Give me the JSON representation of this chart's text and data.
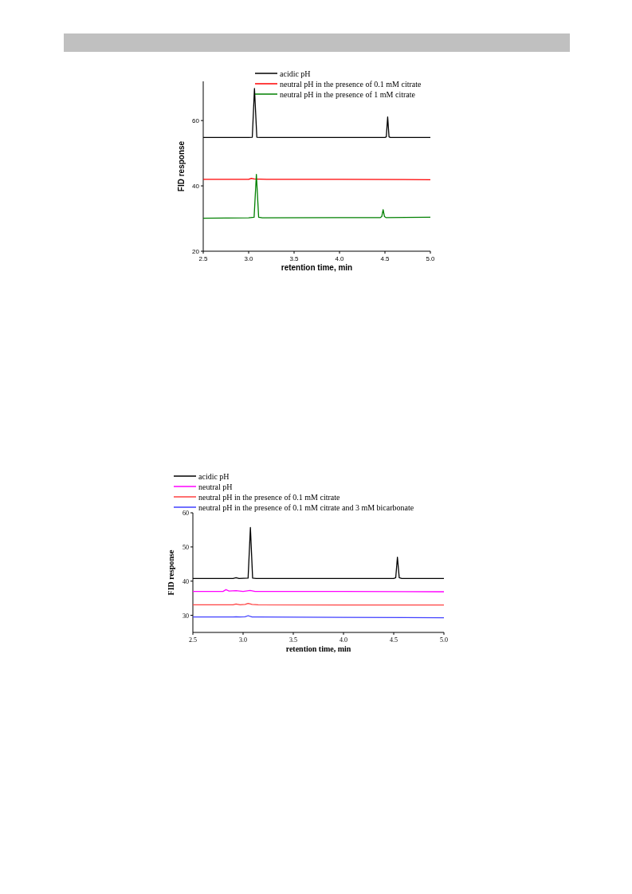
{
  "chart_data": [
    {
      "type": "line",
      "xlabel": "retention time, min",
      "ylabel": "FID response",
      "legend": "top",
      "xlim": [
        2.5,
        5.0
      ],
      "ylim": [
        20,
        72
      ],
      "xticks": [
        2.5,
        {
          "value": 3,
          "label": "3.0"
        },
        3.5,
        {
          "value": 4,
          "label": "4.0"
        },
        4.5,
        {
          "value": 5,
          "label": "5.0"
        }
      ],
      "yticks": [
        20,
        40,
        60
      ],
      "series": [
        {
          "name": "acidic pH",
          "color": "#000000",
          "x": [
            2.5,
            3.0,
            3.04,
            3.064,
            3.09,
            3.13,
            4.0,
            4.5,
            4.515,
            4.53,
            4.545,
            4.56,
            5.0
          ],
          "values": [
            54.8,
            54.8,
            54.9,
            69.8,
            54.9,
            54.8,
            54.8,
            54.8,
            55.0,
            61.1,
            55.0,
            54.8,
            54.8
          ]
        },
        {
          "name": "neutral pH in the presence of 0.1 mM citrate",
          "color": "#ff0000",
          "x": [
            2.5,
            3.0,
            3.03,
            3.06,
            3.2,
            4.0,
            5.0
          ],
          "values": [
            42.0,
            42.0,
            42.3,
            42.1,
            42.0,
            42.0,
            41.9
          ]
        },
        {
          "name": "neutral pH in the presence of 1 mM citrate",
          "color": "#008000",
          "x": [
            2.5,
            3.0,
            3.06,
            3.085,
            3.11,
            3.15,
            4.0,
            4.45,
            4.465,
            4.48,
            4.495,
            4.51,
            5.0
          ],
          "values": [
            30.1,
            30.2,
            30.4,
            43.5,
            30.4,
            30.2,
            30.3,
            30.3,
            30.6,
            32.7,
            30.6,
            30.3,
            30.4
          ]
        }
      ]
    },
    {
      "type": "line",
      "xlabel": "retention time, min",
      "ylabel": "FID response",
      "legend": "top",
      "xlim": [
        2.5,
        5.0
      ],
      "ylim": [
        25,
        60
      ],
      "xticks": [
        2.5,
        {
          "value": 3,
          "label": "3.0"
        },
        3.5,
        {
          "value": 4,
          "label": "4.0"
        },
        4.5,
        {
          "value": 5,
          "label": "5.0"
        }
      ],
      "yticks": [
        30,
        40,
        50,
        60
      ],
      "series": [
        {
          "name": "acidic pH",
          "color": "#000000",
          "x": [
            2.5,
            2.9,
            2.93,
            2.96,
            3.05,
            3.073,
            3.095,
            3.13,
            4.0,
            4.5,
            4.52,
            4.537,
            4.555,
            4.58,
            5.0
          ],
          "values": [
            40.8,
            40.8,
            41.0,
            40.8,
            40.9,
            55.7,
            40.9,
            40.8,
            40.8,
            40.8,
            41.0,
            47.0,
            41.0,
            40.8,
            40.8
          ]
        },
        {
          "name": "neutral pH",
          "color": "#ff00ff",
          "x": [
            2.5,
            2.8,
            2.83,
            2.86,
            2.93,
            3.0,
            3.07,
            3.12,
            4.0,
            5.0
          ],
          "values": [
            37.0,
            37.0,
            37.5,
            37.1,
            37.2,
            37.0,
            37.3,
            37.0,
            37.0,
            36.9
          ]
        },
        {
          "name": "neutral pH in the presence of 0.1 mM citrate",
          "color": "#ff4040",
          "x": [
            2.5,
            2.9,
            2.93,
            2.97,
            3.02,
            3.05,
            3.09,
            3.15,
            4.0,
            5.0
          ],
          "values": [
            33.1,
            33.1,
            33.3,
            33.1,
            33.2,
            33.5,
            33.2,
            33.1,
            33.0,
            33.0
          ]
        },
        {
          "name": "neutral pH in the presence of 0.1 mM citrate and 3 mM bicarbonate",
          "color": "#4040ff",
          "x": [
            2.5,
            2.9,
            2.93,
            2.97,
            3.02,
            3.05,
            3.09,
            3.15,
            4.0,
            5.0
          ],
          "values": [
            29.5,
            29.5,
            29.6,
            29.5,
            29.6,
            29.9,
            29.5,
            29.5,
            29.4,
            29.3
          ]
        }
      ]
    }
  ]
}
